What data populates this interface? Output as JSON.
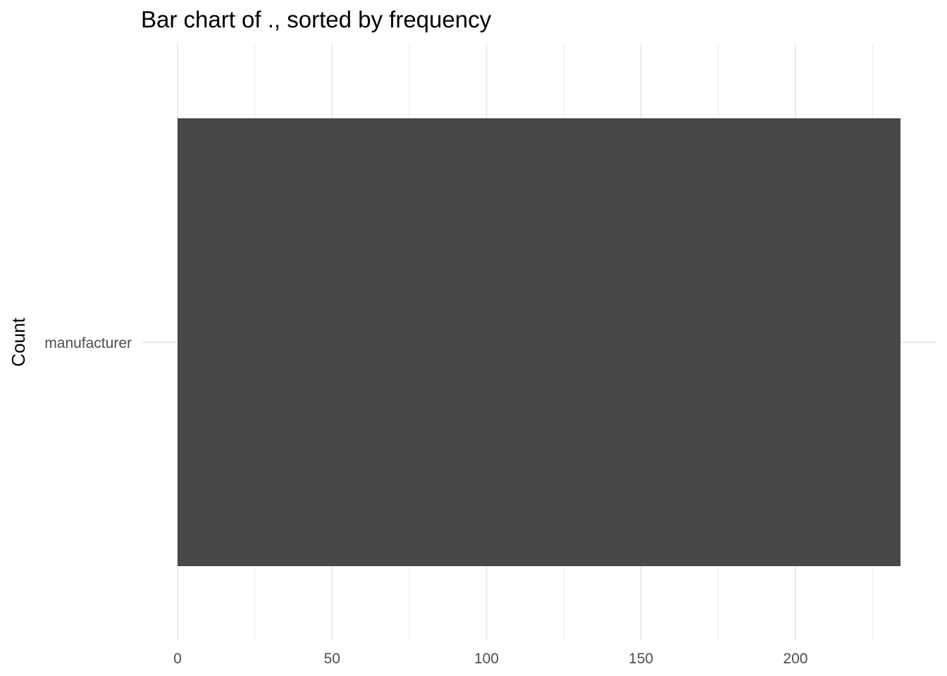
{
  "chart_data": {
    "type": "bar",
    "orientation": "horizontal",
    "title": "Bar chart of ., sorted by frequency",
    "xlabel": "",
    "ylabel": "Count",
    "categories": [
      "manufacturer"
    ],
    "values": [
      234
    ],
    "xlim": [
      0,
      234
    ],
    "x_ticks": [
      0,
      50,
      100,
      150,
      200
    ],
    "x_minor_ticks": [
      25,
      75,
      125,
      175,
      225
    ],
    "grid": true,
    "legend": "none",
    "bar_color": "#474747",
    "grid_color": "#ebebeb"
  }
}
